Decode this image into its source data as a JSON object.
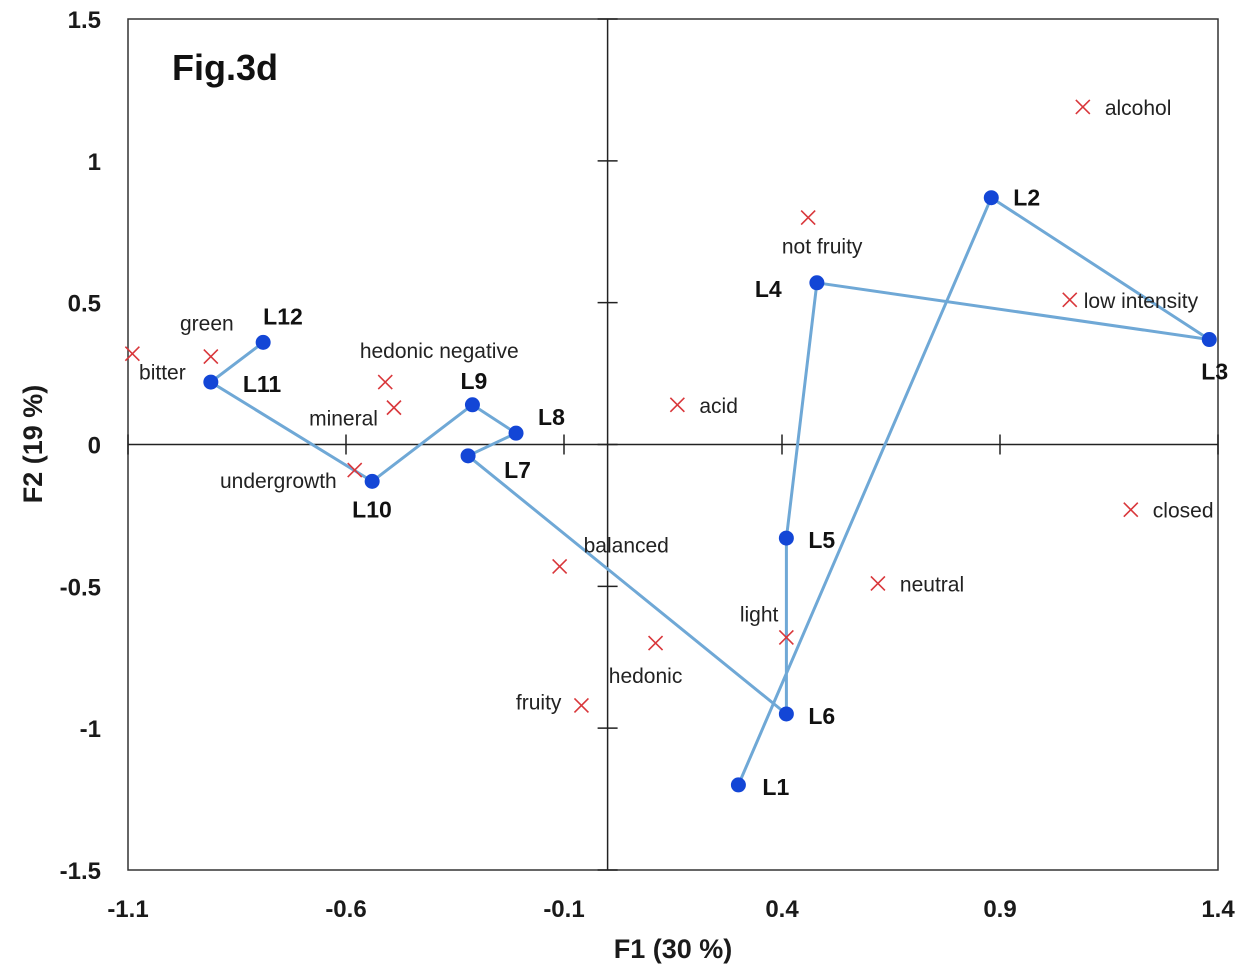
{
  "chart_data": {
    "type": "scatter",
    "title": "Fig.3d",
    "xlabel": "F1 (30 %)",
    "ylabel": "F2 (19 %)",
    "xlim": [
      -1.1,
      1.4
    ],
    "ylim": [
      -1.5,
      1.5
    ],
    "xticks": [
      "-1.1",
      "-0.6",
      "-0.1",
      "0.4",
      "0.9",
      "1.4"
    ],
    "yticks": [
      "1.5",
      "1",
      "0.5",
      "0",
      "-0.5",
      "-1",
      "-1.5"
    ],
    "grid": false,
    "colors": {
      "path": "#6fa8d6",
      "point": "#1346d6",
      "variable": "#d9373b"
    },
    "trajectory": [
      {
        "label": "L1",
        "x": 0.3,
        "y": -1.2
      },
      {
        "label": "L2",
        "x": 0.88,
        "y": 0.87
      },
      {
        "label": "L3",
        "x": 1.38,
        "y": 0.37
      },
      {
        "label": "L4",
        "x": 0.48,
        "y": 0.57
      },
      {
        "label": "L5",
        "x": 0.41,
        "y": -0.33
      },
      {
        "label": "L6",
        "x": 0.41,
        "y": -0.95
      },
      {
        "label": "L7",
        "x": -0.32,
        "y": -0.04
      },
      {
        "label": "L8",
        "x": -0.21,
        "y": 0.04
      },
      {
        "label": "L9",
        "x": -0.31,
        "y": 0.14
      },
      {
        "label": "L10",
        "x": -0.54,
        "y": -0.13
      },
      {
        "label": "L11",
        "x": -0.91,
        "y": 0.22
      },
      {
        "label": "L12",
        "x": -0.79,
        "y": 0.36
      }
    ],
    "variables": [
      {
        "label": "alcohol",
        "x": 1.09,
        "y": 1.19
      },
      {
        "label": "not fruity",
        "x": 0.46,
        "y": 0.8
      },
      {
        "label": "low intensity",
        "x": 1.06,
        "y": 0.51
      },
      {
        "label": "acid",
        "x": 0.16,
        "y": 0.14
      },
      {
        "label": "closed",
        "x": 1.2,
        "y": -0.23
      },
      {
        "label": "neutral",
        "x": 0.62,
        "y": -0.49
      },
      {
        "label": "balanced",
        "x": -0.11,
        "y": -0.43
      },
      {
        "label": "light",
        "x": 0.41,
        "y": -0.68
      },
      {
        "label": "hedonic",
        "x": 0.11,
        "y": -0.7
      },
      {
        "label": "fruity",
        "x": -0.06,
        "y": -0.92
      },
      {
        "label": "green",
        "x": -0.91,
        "y": 0.31
      },
      {
        "label": "bitter",
        "x": -1.09,
        "y": 0.32
      },
      {
        "label": "hedonic negative",
        "x": -0.51,
        "y": 0.22
      },
      {
        "label": "mineral",
        "x": -0.49,
        "y": 0.13
      },
      {
        "label": "undergrowth",
        "x": -0.58,
        "y": -0.09
      }
    ]
  }
}
